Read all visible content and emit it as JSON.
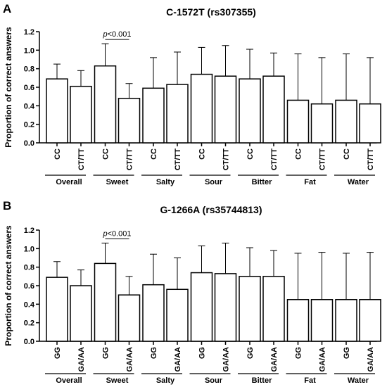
{
  "chart_data": [
    {
      "type": "bar",
      "panel_label": "A",
      "title": "C-1572T (rs307355)",
      "ylabel": "Proportion of correct answers",
      "ylim": [
        0,
        1.2
      ],
      "yticks": [
        "0.0",
        "0.2",
        "0.4",
        "0.6",
        "0.8",
        "1.0",
        "1.2"
      ],
      "groups": [
        "Overall",
        "Sweet",
        "Salty",
        "Sour",
        "Bitter",
        "Fat",
        "Water"
      ],
      "genotypes": [
        "CC",
        "CT/TT"
      ],
      "values": [
        [
          0.69,
          0.61
        ],
        [
          0.83,
          0.48
        ],
        [
          0.59,
          0.63
        ],
        [
          0.74,
          0.72
        ],
        [
          0.69,
          0.72
        ],
        [
          0.46,
          0.42
        ],
        [
          0.46,
          0.42
        ]
      ],
      "error_upper": [
        [
          0.85,
          0.78
        ],
        [
          1.07,
          0.64
        ],
        [
          0.92,
          0.98
        ],
        [
          1.03,
          1.05
        ],
        [
          1.01,
          0.97
        ],
        [
          0.96,
          0.92
        ],
        [
          0.96,
          0.92
        ]
      ],
      "annotation": {
        "text_italic": "p",
        "text": "<0.001",
        "group_index": 1
      }
    },
    {
      "type": "bar",
      "panel_label": "B",
      "title": "G-1266A (rs35744813)",
      "ylabel": "Proportion of correct answers",
      "ylim": [
        0,
        1.2
      ],
      "yticks": [
        "0.0",
        "0.2",
        "0.4",
        "0.6",
        "0.8",
        "1.0",
        "1.2"
      ],
      "groups": [
        "Overall",
        "Sweet",
        "Salty",
        "Sour",
        "Bitter",
        "Fat",
        "Water"
      ],
      "genotypes": [
        "GG",
        "GA/AA"
      ],
      "values": [
        [
          0.69,
          0.6
        ],
        [
          0.84,
          0.5
        ],
        [
          0.61,
          0.56
        ],
        [
          0.74,
          0.73
        ],
        [
          0.7,
          0.7
        ],
        [
          0.45,
          0.45
        ],
        [
          0.45,
          0.45
        ]
      ],
      "error_upper": [
        [
          0.86,
          0.77
        ],
        [
          1.06,
          0.7
        ],
        [
          0.94,
          0.9
        ],
        [
          1.03,
          1.06
        ],
        [
          1.01,
          0.98
        ],
        [
          0.95,
          0.96
        ],
        [
          0.95,
          0.96
        ]
      ],
      "annotation": {
        "text_italic": "p",
        "text": "<0.001",
        "group_index": 1
      }
    }
  ]
}
